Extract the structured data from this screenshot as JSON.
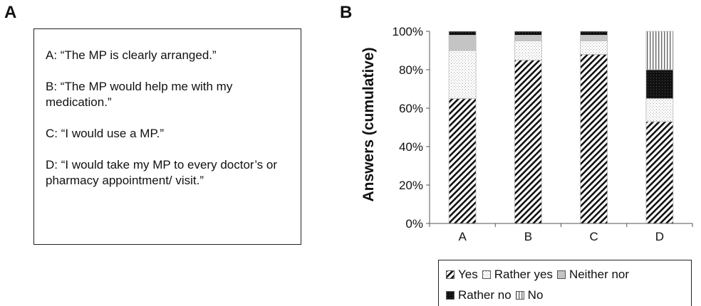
{
  "panel_a": {
    "letter": "A",
    "statements": [
      "A: “The MP is clearly arranged.”",
      "B: “The MP would help me with my medication.”",
      "C: “I would use a MP.”",
      "D: “I would take my MP to every doctor’s or pharmacy appointment/ visit.”"
    ]
  },
  "panel_b": {
    "letter": "B"
  },
  "chart_data": {
    "type": "bar",
    "stacked": true,
    "title": "",
    "xlabel": "",
    "ylabel": "Answers (cumulative)",
    "categories": [
      "A",
      "B",
      "C",
      "D"
    ],
    "ylim": [
      0,
      100
    ],
    "yticks": [
      "0%",
      "20%",
      "40%",
      "60%",
      "80%",
      "100%"
    ],
    "grid": false,
    "legend_position": "bottom",
    "series": [
      {
        "name": "Yes",
        "pattern": "diagonal",
        "values": [
          65,
          85,
          88,
          53
        ]
      },
      {
        "name": "Rather yes",
        "pattern": "dots",
        "values": [
          25,
          10,
          7,
          12
        ]
      },
      {
        "name": "Neither nor",
        "pattern": "gray",
        "values": [
          8,
          3,
          3,
          0
        ]
      },
      {
        "name": "Rather no",
        "pattern": "black",
        "values": [
          2,
          2,
          2,
          15
        ]
      },
      {
        "name": "No",
        "pattern": "vertical",
        "values": [
          0,
          0,
          0,
          20
        ]
      }
    ]
  }
}
